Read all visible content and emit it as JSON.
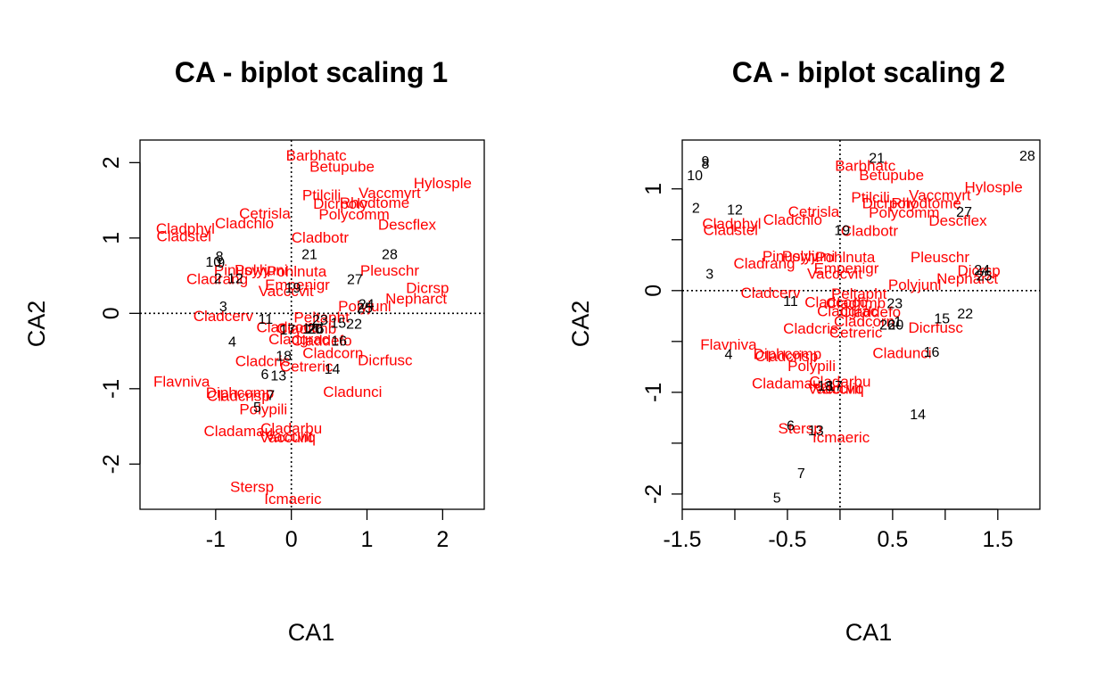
{
  "colors": {
    "species": "#ff0000",
    "sites": "#000000",
    "axes": "#000000"
  },
  "chart_data": [
    {
      "type": "scatter",
      "title": "CA - biplot scaling 1",
      "xlabel": "CA1",
      "ylabel": "CA2",
      "xlim": [
        -2.0,
        2.55
      ],
      "ylim": [
        -2.6,
        2.3
      ],
      "xticks": [
        -1,
        0,
        1,
        2
      ],
      "yticks": [
        -2,
        -1,
        0,
        1,
        2
      ],
      "ref_lines": {
        "x": 0,
        "y": 0
      },
      "series": [
        {
          "name": "sites",
          "points": [
            {
              "label": "1",
              "x": 0.2,
              "y": -0.2
            },
            {
              "label": "2",
              "x": -0.97,
              "y": 0.47
            },
            {
              "label": "3",
              "x": -0.9,
              "y": 0.1
            },
            {
              "label": "4",
              "x": -0.78,
              "y": -0.37
            },
            {
              "label": "5",
              "x": -0.45,
              "y": -1.24
            },
            {
              "label": "6",
              "x": -0.35,
              "y": -0.8
            },
            {
              "label": "7",
              "x": -0.27,
              "y": -1.08
            },
            {
              "label": "8",
              "x": -0.95,
              "y": 0.76
            },
            {
              "label": "9",
              "x": -0.93,
              "y": 0.68
            },
            {
              "label": "10",
              "x": -1.03,
              "y": 0.69
            },
            {
              "label": "11",
              "x": -0.34,
              "y": -0.07
            },
            {
              "label": "12",
              "x": -0.74,
              "y": 0.47
            },
            {
              "label": "13",
              "x": -0.17,
              "y": -0.82
            },
            {
              "label": "14",
              "x": 0.54,
              "y": -0.73
            },
            {
              "label": "15",
              "x": 0.62,
              "y": -0.12
            },
            {
              "label": "16",
              "x": 0.63,
              "y": -0.36
            },
            {
              "label": "17",
              "x": -0.05,
              "y": -0.21
            },
            {
              "label": "18",
              "x": -0.1,
              "y": -0.56
            },
            {
              "label": "19",
              "x": 0.02,
              "y": 0.35
            },
            {
              "label": "20",
              "x": 0.31,
              "y": -0.2
            },
            {
              "label": "21",
              "x": 0.24,
              "y": 0.79
            },
            {
              "label": "22",
              "x": 0.83,
              "y": -0.13
            },
            {
              "label": "23",
              "x": 0.38,
              "y": -0.08
            },
            {
              "label": "24",
              "x": 0.99,
              "y": 0.13
            },
            {
              "label": "25",
              "x": 0.97,
              "y": 0.08
            },
            {
              "label": "26",
              "x": 0.33,
              "y": -0.2
            },
            {
              "label": "27",
              "x": 0.84,
              "y": 0.46
            },
            {
              "label": "28",
              "x": 1.3,
              "y": 0.79
            }
          ]
        },
        {
          "name": "species",
          "points": [
            {
              "label": "Barbhatc",
              "x": 0.33,
              "y": 2.1
            },
            {
              "label": "Betupube",
              "x": 0.67,
              "y": 1.95
            },
            {
              "label": "Hylosple",
              "x": 2.0,
              "y": 1.73
            },
            {
              "label": "Vaccmyrt",
              "x": 1.3,
              "y": 1.6
            },
            {
              "label": "Ptilcili",
              "x": 0.4,
              "y": 1.57
            },
            {
              "label": "Dicrpoly",
              "x": 0.65,
              "y": 1.46
            },
            {
              "label": "Rhodtome",
              "x": 1.1,
              "y": 1.47
            },
            {
              "label": "Polycomm",
              "x": 0.83,
              "y": 1.32
            },
            {
              "label": "Cetrisla",
              "x": -0.35,
              "y": 1.33
            },
            {
              "label": "Cladchlo",
              "x": -0.62,
              "y": 1.2
            },
            {
              "label": "Cladphyl",
              "x": -1.4,
              "y": 1.13
            },
            {
              "label": "Descflex",
              "x": 1.53,
              "y": 1.18
            },
            {
              "label": "Cladstel",
              "x": -1.42,
              "y": 1.03
            },
            {
              "label": "Cladbotr",
              "x": 0.38,
              "y": 1.01
            },
            {
              "label": "Pinusylv",
              "x": -0.65,
              "y": 0.58
            },
            {
              "label": "Polyjuni",
              "x": -0.4,
              "y": 0.58
            },
            {
              "label": "Pohlnuta",
              "x": 0.07,
              "y": 0.56
            },
            {
              "label": "Pleuschr",
              "x": 1.3,
              "y": 0.57
            },
            {
              "label": "Cladrang",
              "x": -0.98,
              "y": 0.46
            },
            {
              "label": "Empenigr",
              "x": 0.08,
              "y": 0.38
            },
            {
              "label": "Vacccvit",
              "x": -0.07,
              "y": 0.3
            },
            {
              "label": "Dicrsp",
              "x": 1.8,
              "y": 0.34
            },
            {
              "label": "Nepharct",
              "x": 1.65,
              "y": 0.2
            },
            {
              "label": "Polyjunl",
              "x": 0.97,
              "y": 0.1
            },
            {
              "label": "Cladcerv",
              "x": -0.9,
              "y": -0.03
            },
            {
              "label": "Peltapht",
              "x": 0.4,
              "y": -0.05
            },
            {
              "label": "Cladcocc",
              "x": -0.05,
              "y": -0.18
            },
            {
              "label": "Cladfimb",
              "x": 0.2,
              "y": -0.2
            },
            {
              "label": "Claddefo",
              "x": 0.4,
              "y": -0.36
            },
            {
              "label": "Cladgrac",
              "x": 0.1,
              "y": -0.34
            },
            {
              "label": "Cladcorn",
              "x": 0.55,
              "y": -0.52
            },
            {
              "label": "Dicrfusc",
              "x": 1.24,
              "y": -0.62
            },
            {
              "label": "Cladcris",
              "x": -0.38,
              "y": -0.63
            },
            {
              "label": "Cetreric",
              "x": 0.2,
              "y": -0.7
            },
            {
              "label": "Flavniva",
              "x": -1.45,
              "y": -0.9
            },
            {
              "label": "Cladunci",
              "x": 0.81,
              "y": -1.04
            },
            {
              "label": "Diphcomp",
              "x": -0.68,
              "y": -1.05
            },
            {
              "label": "Cladcrisp",
              "x": -0.7,
              "y": -1.09
            },
            {
              "label": "Polypili",
              "x": -0.37,
              "y": -1.27
            },
            {
              "label": "Cladarbu",
              "x": 0.0,
              "y": -1.52
            },
            {
              "label": "Cladamau",
              "x": -0.7,
              "y": -1.56
            },
            {
              "label": "Vaccvit",
              "x": -0.03,
              "y": -1.63
            },
            {
              "label": "Vacculiq",
              "x": -0.05,
              "y": -1.64
            },
            {
              "label": "Stersp",
              "x": -0.52,
              "y": -2.3
            },
            {
              "label": "Icmaeric",
              "x": 0.02,
              "y": -2.46
            }
          ]
        }
      ]
    },
    {
      "type": "scatter",
      "title": "CA - biplot scaling 2",
      "xlabel": "CA1",
      "ylabel": "CA2",
      "xlim": [
        -1.5,
        1.9
      ],
      "ylim": [
        -2.15,
        1.48
      ],
      "xticks": [
        -1.5,
        -0.5,
        0.5,
        1.5
      ],
      "xticks_minor": [
        -1.0,
        0.0,
        1.0
      ],
      "yticks": [
        -2.0,
        -1.0,
        0.0,
        1.0
      ],
      "yticks_minor": [
        -1.5,
        -0.5,
        0.5
      ],
      "ref_lines": {
        "x": 0,
        "y": 0
      },
      "series": [
        {
          "name": "sites",
          "points": [
            {
              "label": "1",
              "x": 0.55,
              "y": -0.3
            },
            {
              "label": "2",
              "x": -1.37,
              "y": 0.82
            },
            {
              "label": "3",
              "x": -1.24,
              "y": 0.17
            },
            {
              "label": "4",
              "x": -1.06,
              "y": -0.62
            },
            {
              "label": "5",
              "x": -0.6,
              "y": -2.03
            },
            {
              "label": "6",
              "x": -0.47,
              "y": -1.32
            },
            {
              "label": "7",
              "x": -0.37,
              "y": -1.79
            },
            {
              "label": "8",
              "x": -1.28,
              "y": 1.25
            },
            {
              "label": "9",
              "x": -1.28,
              "y": 1.28
            },
            {
              "label": "10",
              "x": -1.38,
              "y": 1.14
            },
            {
              "label": "11",
              "x": -0.47,
              "y": -0.1
            },
            {
              "label": "12",
              "x": -1.0,
              "y": 0.8
            },
            {
              "label": "13",
              "x": -0.23,
              "y": -1.37
            },
            {
              "label": "14",
              "x": 0.74,
              "y": -1.21
            },
            {
              "label": "15",
              "x": 0.97,
              "y": -0.27
            },
            {
              "label": "16",
              "x": 0.87,
              "y": -0.6
            },
            {
              "label": "17",
              "x": -0.05,
              "y": -0.93
            },
            {
              "label": "18",
              "x": -0.14,
              "y": -0.93
            },
            {
              "label": "19",
              "x": 0.02,
              "y": 0.6
            },
            {
              "label": "20",
              "x": 0.53,
              "y": -0.33
            },
            {
              "label": "21",
              "x": 0.35,
              "y": 1.31
            },
            {
              "label": "22",
              "x": 1.19,
              "y": -0.22
            },
            {
              "label": "23",
              "x": 0.52,
              "y": -0.12
            },
            {
              "label": "24",
              "x": 1.35,
              "y": 0.21
            },
            {
              "label": "25",
              "x": 1.37,
              "y": 0.15
            },
            {
              "label": "26",
              "x": 0.45,
              "y": -0.33
            },
            {
              "label": "27",
              "x": 1.18,
              "y": 0.78
            },
            {
              "label": "28",
              "x": 1.78,
              "y": 1.33
            }
          ]
        },
        {
          "name": "species",
          "points": [
            {
              "label": "Barbhatc",
              "x": 0.24,
              "y": 1.23
            },
            {
              "label": "Betupube",
              "x": 0.49,
              "y": 1.14
            },
            {
              "label": "Hylosple",
              "x": 1.46,
              "y": 1.02
            },
            {
              "label": "Vaccmyrt",
              "x": 0.95,
              "y": 0.94
            },
            {
              "label": "Ptilcili",
              "x": 0.29,
              "y": 0.92
            },
            {
              "label": "Dicrpoly",
              "x": 0.47,
              "y": 0.86
            },
            {
              "label": "Rhodtome",
              "x": 0.82,
              "y": 0.86
            },
            {
              "label": "Polycomm",
              "x": 0.61,
              "y": 0.77
            },
            {
              "label": "Cetrisla",
              "x": -0.25,
              "y": 0.78
            },
            {
              "label": "Cladchlo",
              "x": -0.45,
              "y": 0.7
            },
            {
              "label": "Cladphyl",
              "x": -1.03,
              "y": 0.66
            },
            {
              "label": "Descflex",
              "x": 1.12,
              "y": 0.69
            },
            {
              "label": "Cladstel",
              "x": -1.04,
              "y": 0.6
            },
            {
              "label": "Cladbotr",
              "x": 0.28,
              "y": 0.59
            },
            {
              "label": "Pinusylv",
              "x": -0.47,
              "y": 0.34
            },
            {
              "label": "Polyjuni",
              "x": -0.3,
              "y": 0.34
            },
            {
              "label": "Pohlnuta",
              "x": 0.05,
              "y": 0.33
            },
            {
              "label": "Pleuschr",
              "x": 0.95,
              "y": 0.33
            },
            {
              "label": "Cladrang",
              "x": -0.72,
              "y": 0.27
            },
            {
              "label": "Empenigr",
              "x": 0.06,
              "y": 0.22
            },
            {
              "label": "Vacccvit",
              "x": -0.05,
              "y": 0.17
            },
            {
              "label": "Dicrsp",
              "x": 1.32,
              "y": 0.2
            },
            {
              "label": "Nepharct",
              "x": 1.21,
              "y": 0.12
            },
            {
              "label": "Polyjunl",
              "x": 0.71,
              "y": 0.06
            },
            {
              "label": "Cladcerv",
              "x": -0.66,
              "y": -0.02
            },
            {
              "label": "Peltapht",
              "x": 0.18,
              "y": -0.03
            },
            {
              "label": "Cladcocc",
              "x": -0.04,
              "y": -0.11
            },
            {
              "label": "Cladfimb",
              "x": 0.15,
              "y": -0.12
            },
            {
              "label": "Claddefo",
              "x": 0.29,
              "y": -0.21
            },
            {
              "label": "Cladgrac",
              "x": 0.07,
              "y": -0.2
            },
            {
              "label": "Cladcorn",
              "x": 0.23,
              "y": -0.3
            },
            {
              "label": "Dicrfusc",
              "x": 0.91,
              "y": -0.36
            },
            {
              "label": "Cladcris",
              "x": -0.28,
              "y": -0.37
            },
            {
              "label": "Cetreric",
              "x": 0.15,
              "y": -0.41
            },
            {
              "label": "Flavniva",
              "x": -1.06,
              "y": -0.53
            },
            {
              "label": "Cladunci",
              "x": 0.59,
              "y": -0.61
            },
            {
              "label": "Diphcomp",
              "x": -0.5,
              "y": -0.62
            },
            {
              "label": "Cladcrisp",
              "x": -0.51,
              "y": -0.64
            },
            {
              "label": "Polypili",
              "x": -0.27,
              "y": -0.74
            },
            {
              "label": "Cladarbu",
              "x": 0.0,
              "y": -0.89
            },
            {
              "label": "Cladamau",
              "x": -0.51,
              "y": -0.91
            },
            {
              "label": "Vaccvit",
              "x": -0.02,
              "y": -0.96
            },
            {
              "label": "Vacculiq",
              "x": -0.04,
              "y": -0.96
            },
            {
              "label": "Stersp",
              "x": -0.38,
              "y": -1.35
            },
            {
              "label": "Icmaeric",
              "x": 0.01,
              "y": -1.44
            }
          ]
        }
      ]
    }
  ]
}
